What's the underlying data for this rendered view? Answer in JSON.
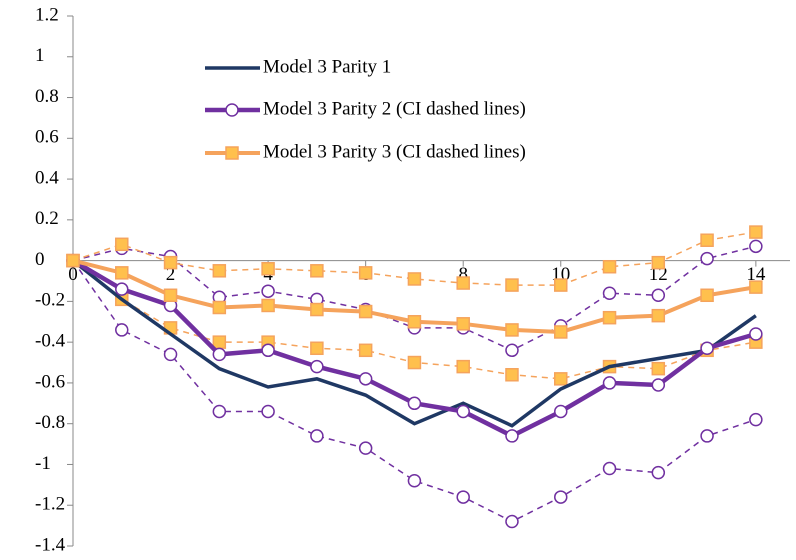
{
  "chart_data": {
    "type": "line",
    "x": [
      0,
      1,
      2,
      3,
      4,
      5,
      6,
      7,
      8,
      9,
      10,
      11,
      12,
      13,
      14
    ],
    "xlim": [
      0,
      14.7
    ],
    "xticks": [
      0,
      2,
      4,
      6,
      8,
      10,
      12,
      14
    ],
    "ylim": [
      -1.4,
      1.2
    ],
    "yticks": [
      1.2,
      1,
      0.8,
      0.6,
      0.4,
      0.2,
      0,
      -0.2,
      -0.4,
      -0.6,
      -0.8,
      -1,
      -1.2,
      -1.4
    ],
    "series": [
      {
        "name": "Model 3 Parity 1",
        "color": "#1f3864",
        "marker": "none",
        "values": [
          0,
          -0.19,
          -0.36,
          -0.53,
          -0.62,
          -0.58,
          -0.66,
          -0.8,
          -0.7,
          -0.81,
          -0.63,
          -0.52,
          -0.48,
          -0.44,
          -0.27
        ]
      },
      {
        "name": "Model 3 Parity 2 (CI dashed lines)",
        "color": "#7030a0",
        "marker": "circle",
        "values": [
          0,
          -0.14,
          -0.22,
          -0.46,
          -0.44,
          -0.52,
          -0.58,
          -0.7,
          -0.74,
          -0.86,
          -0.74,
          -0.6,
          -0.61,
          -0.43,
          -0.36
        ],
        "ci_upper": [
          0,
          0.06,
          0.02,
          -0.18,
          -0.15,
          -0.19,
          -0.24,
          -0.33,
          -0.33,
          -0.44,
          -0.32,
          -0.16,
          -0.17,
          0.01,
          0.07
        ],
        "ci_lower": [
          0,
          -0.34,
          -0.46,
          -0.74,
          -0.74,
          -0.86,
          -0.92,
          -1.08,
          -1.16,
          -1.28,
          -1.16,
          -1.02,
          -1.04,
          -0.86,
          -0.78
        ]
      },
      {
        "name": "Model 3 Parity 3 (CI dashed lines)",
        "color": "#f5a35c",
        "marker": "square",
        "values": [
          0,
          -0.06,
          -0.17,
          -0.23,
          -0.22,
          -0.24,
          -0.25,
          -0.3,
          -0.31,
          -0.34,
          -0.35,
          -0.28,
          -0.27,
          -0.17,
          -0.13
        ],
        "ci_upper": [
          0,
          0.08,
          -0.01,
          -0.05,
          -0.04,
          -0.05,
          -0.06,
          -0.09,
          -0.11,
          -0.12,
          -0.12,
          -0.03,
          -0.01,
          0.1,
          0.14
        ],
        "ci_lower": [
          0,
          -0.19,
          -0.33,
          -0.4,
          -0.4,
          -0.43,
          -0.44,
          -0.5,
          -0.52,
          -0.56,
          -0.58,
          -0.52,
          -0.53,
          -0.44,
          -0.4
        ]
      }
    ]
  }
}
